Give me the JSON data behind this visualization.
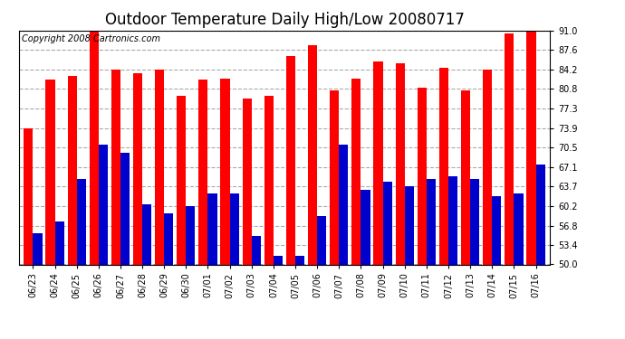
{
  "title": "Outdoor Temperature Daily High/Low 20080717",
  "copyright": "Copyright 2008 Cartronics.com",
  "dates": [
    "06/23",
    "06/24",
    "06/25",
    "06/26",
    "06/27",
    "06/28",
    "06/29",
    "06/30",
    "07/01",
    "07/02",
    "07/03",
    "07/04",
    "07/05",
    "07/06",
    "07/07",
    "07/08",
    "07/09",
    "07/10",
    "07/11",
    "07/12",
    "07/13",
    "07/14",
    "07/15",
    "07/16"
  ],
  "highs": [
    73.9,
    82.4,
    83.0,
    91.0,
    84.2,
    83.5,
    84.2,
    79.5,
    82.4,
    82.5,
    79.0,
    79.5,
    86.5,
    88.5,
    80.5,
    82.5,
    85.5,
    85.2,
    81.0,
    84.5,
    80.5,
    84.2,
    90.5,
    91.0
  ],
  "lows": [
    55.5,
    57.5,
    65.0,
    71.0,
    69.5,
    60.5,
    59.0,
    60.2,
    62.5,
    62.5,
    55.0,
    51.5,
    51.5,
    58.5,
    71.0,
    63.0,
    64.5,
    63.7,
    65.0,
    65.5,
    65.0,
    62.0,
    62.5,
    67.5
  ],
  "high_color": "#ff0000",
  "low_color": "#0000cc",
  "bg_color": "#ffffff",
  "grid_color": "#aaaaaa",
  "ylim_min": 50.0,
  "ylim_max": 91.0,
  "yticks": [
    50.0,
    53.4,
    56.8,
    60.2,
    63.7,
    67.1,
    70.5,
    73.9,
    77.3,
    80.8,
    84.2,
    87.6,
    91.0
  ],
  "bar_width": 0.42,
  "title_fontsize": 12,
  "tick_fontsize": 7,
  "copyright_fontsize": 7
}
